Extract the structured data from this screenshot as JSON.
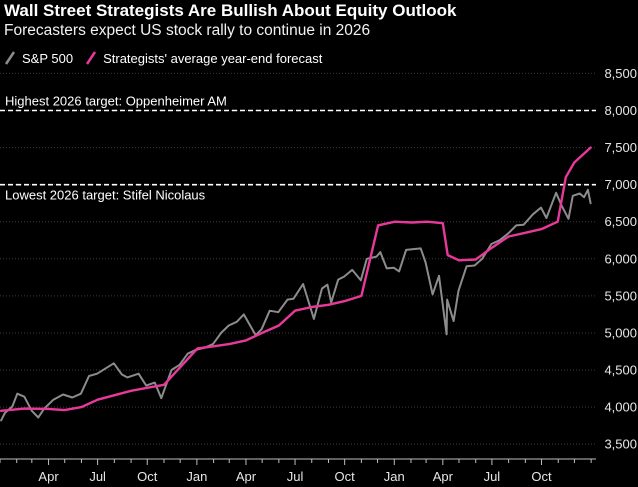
{
  "chart_data": {
    "type": "line",
    "title": "Wall Street Strategists Are Bullish About Equity Outlook",
    "subtitle": "Forecasters expect US stock rally to continue in 2026",
    "series": [
      {
        "name": "S&P 500",
        "color": "#8c8c8c",
        "points": [
          [
            "2023-01-03",
            3820
          ],
          [
            "2023-01-10",
            3920
          ],
          [
            "2023-01-24",
            4010
          ],
          [
            "2023-02-02",
            4180
          ],
          [
            "2023-02-15",
            4140
          ],
          [
            "2023-03-01",
            3950
          ],
          [
            "2023-03-13",
            3860
          ],
          [
            "2023-03-24",
            3980
          ],
          [
            "2023-04-10",
            4100
          ],
          [
            "2023-04-28",
            4170
          ],
          [
            "2023-05-15",
            4130
          ],
          [
            "2023-05-31",
            4180
          ],
          [
            "2023-06-15",
            4420
          ],
          [
            "2023-06-30",
            4450
          ],
          [
            "2023-07-31",
            4590
          ],
          [
            "2023-08-15",
            4440
          ],
          [
            "2023-08-25",
            4400
          ],
          [
            "2023-09-15",
            4450
          ],
          [
            "2023-09-29",
            4290
          ],
          [
            "2023-10-15",
            4330
          ],
          [
            "2023-10-27",
            4120
          ],
          [
            "2023-11-15",
            4500
          ],
          [
            "2023-11-30",
            4570
          ],
          [
            "2023-12-15",
            4720
          ],
          [
            "2023-12-29",
            4770
          ],
          [
            "2024-01-15",
            4800
          ],
          [
            "2024-01-31",
            4850
          ],
          [
            "2024-02-15",
            5000
          ],
          [
            "2024-02-29",
            5100
          ],
          [
            "2024-03-15",
            5150
          ],
          [
            "2024-03-28",
            5250
          ],
          [
            "2024-04-19",
            4970
          ],
          [
            "2024-04-30",
            5050
          ],
          [
            "2024-05-15",
            5300
          ],
          [
            "2024-05-31",
            5280
          ],
          [
            "2024-06-17",
            5450
          ],
          [
            "2024-06-28",
            5460
          ],
          [
            "2024-07-16",
            5660
          ],
          [
            "2024-08-05",
            5190
          ],
          [
            "2024-08-20",
            5600
          ],
          [
            "2024-08-30",
            5650
          ],
          [
            "2024-09-06",
            5410
          ],
          [
            "2024-09-19",
            5720
          ],
          [
            "2024-09-30",
            5760
          ],
          [
            "2024-10-15",
            5850
          ],
          [
            "2024-10-31",
            5710
          ],
          [
            "2024-11-11",
            6000
          ],
          [
            "2024-11-29",
            6030
          ],
          [
            "2024-12-06",
            6090
          ],
          [
            "2024-12-18",
            5870
          ],
          [
            "2024-12-31",
            5880
          ],
          [
            "2025-01-10",
            5830
          ],
          [
            "2025-01-23",
            6120
          ],
          [
            "2025-02-19",
            6140
          ],
          [
            "2025-02-28",
            5950
          ],
          [
            "2025-03-13",
            5520
          ],
          [
            "2025-03-25",
            5770
          ],
          [
            "2025-04-08",
            4980
          ],
          [
            "2025-04-09",
            5450
          ],
          [
            "2025-04-21",
            5160
          ],
          [
            "2025-04-30",
            5570
          ],
          [
            "2025-05-15",
            5900
          ],
          [
            "2025-05-30",
            5910
          ],
          [
            "2025-06-13",
            6000
          ],
          [
            "2025-06-30",
            6200
          ],
          [
            "2025-07-15",
            6250
          ],
          [
            "2025-07-31",
            6340
          ],
          [
            "2025-08-15",
            6450
          ],
          [
            "2025-08-29",
            6460
          ],
          [
            "2025-09-15",
            6600
          ],
          [
            "2025-09-30",
            6690
          ],
          [
            "2025-10-10",
            6550
          ],
          [
            "2025-10-28",
            6890
          ],
          [
            "2025-11-07",
            6720
          ],
          [
            "2025-11-20",
            6540
          ],
          [
            "2025-11-28",
            6850
          ],
          [
            "2025-12-11",
            6880
          ],
          [
            "2025-12-19",
            6830
          ],
          [
            "2025-12-26",
            6930
          ],
          [
            "2025-12-31",
            6750
          ]
        ]
      },
      {
        "name": "Strategists' average year-end forecast",
        "color": "#e8399b",
        "points": [
          [
            "2023-01-03",
            3950
          ],
          [
            "2023-02-15",
            3980
          ],
          [
            "2023-03-31",
            3975
          ],
          [
            "2023-05-01",
            3960
          ],
          [
            "2023-06-01",
            4000
          ],
          [
            "2023-07-01",
            4100
          ],
          [
            "2023-09-01",
            4220
          ],
          [
            "2023-10-01",
            4260
          ],
          [
            "2023-11-01",
            4300
          ],
          [
            "2024-01-02",
            4790
          ],
          [
            "2024-02-01",
            4820
          ],
          [
            "2024-03-01",
            4850
          ],
          [
            "2024-04-01",
            4900
          ],
          [
            "2024-05-01",
            5000
          ],
          [
            "2024-06-01",
            5100
          ],
          [
            "2024-07-01",
            5300
          ],
          [
            "2024-08-01",
            5350
          ],
          [
            "2024-09-01",
            5380
          ],
          [
            "2024-10-01",
            5430
          ],
          [
            "2024-11-01",
            5500
          ],
          [
            "2024-12-02",
            6450
          ],
          [
            "2025-01-02",
            6500
          ],
          [
            "2025-02-03",
            6490
          ],
          [
            "2025-03-03",
            6500
          ],
          [
            "2025-04-01",
            6480
          ],
          [
            "2025-04-10",
            6050
          ],
          [
            "2025-05-01",
            5980
          ],
          [
            "2025-06-01",
            5990
          ],
          [
            "2025-07-01",
            6150
          ],
          [
            "2025-08-01",
            6300
          ],
          [
            "2025-09-01",
            6350
          ],
          [
            "2025-10-01",
            6400
          ],
          [
            "2025-10-31",
            6500
          ],
          [
            "2025-11-15",
            7100
          ],
          [
            "2025-12-01",
            7300
          ],
          [
            "2025-12-31",
            7500
          ]
        ]
      }
    ],
    "reference_lines": [
      {
        "label": "Highest 2026 target: Oppenheimer AM",
        "value": 8000
      },
      {
        "label": "Lowest 2026 target: Stifel Nicolaus",
        "value": 7000
      }
    ],
    "y_axis": {
      "min": 3300,
      "max": 8600,
      "ticks": [
        3500,
        4000,
        4500,
        5000,
        5500,
        6000,
        6500,
        7000,
        7500,
        8000,
        8500
      ],
      "tick_labels": [
        "3,500",
        "4,000",
        "4,500",
        "5,000",
        "5,500",
        "6,000",
        "6,500",
        "7,000",
        "7,500",
        "8,000",
        "8,500"
      ]
    },
    "x_axis": {
      "start": "2023-01-01",
      "end": "2026-01-10",
      "ticks": [
        {
          "date": "2023-04-01",
          "label": "Apr"
        },
        {
          "date": "2023-07-01",
          "label": "Jul"
        },
        {
          "date": "2023-10-01",
          "label": "Oct"
        },
        {
          "date": "2024-01-01",
          "label": "Jan"
        },
        {
          "date": "2024-04-01",
          "label": "Apr"
        },
        {
          "date": "2024-07-01",
          "label": "Jul"
        },
        {
          "date": "2024-10-01",
          "label": "Oct"
        },
        {
          "date": "2025-01-01",
          "label": "Jan"
        },
        {
          "date": "2025-04-01",
          "label": "Apr"
        },
        {
          "date": "2025-07-01",
          "label": "Jul"
        },
        {
          "date": "2025-10-01",
          "label": "Oct"
        }
      ],
      "minor_ticks": [
        "2023-01-01",
        "2023-02-01",
        "2023-03-01",
        "2023-05-01",
        "2023-06-01",
        "2023-08-01",
        "2023-09-01",
        "2023-11-01",
        "2023-12-01",
        "2024-02-01",
        "2024-03-01",
        "2024-05-01",
        "2024-06-01",
        "2024-08-01",
        "2024-09-01",
        "2024-11-01",
        "2024-12-01",
        "2025-02-01",
        "2025-03-01",
        "2025-05-01",
        "2025-06-01",
        "2025-08-01",
        "2025-09-01",
        "2025-11-01",
        "2025-12-01",
        "2026-01-01"
      ]
    },
    "grid": true,
    "legend": "top-left"
  }
}
